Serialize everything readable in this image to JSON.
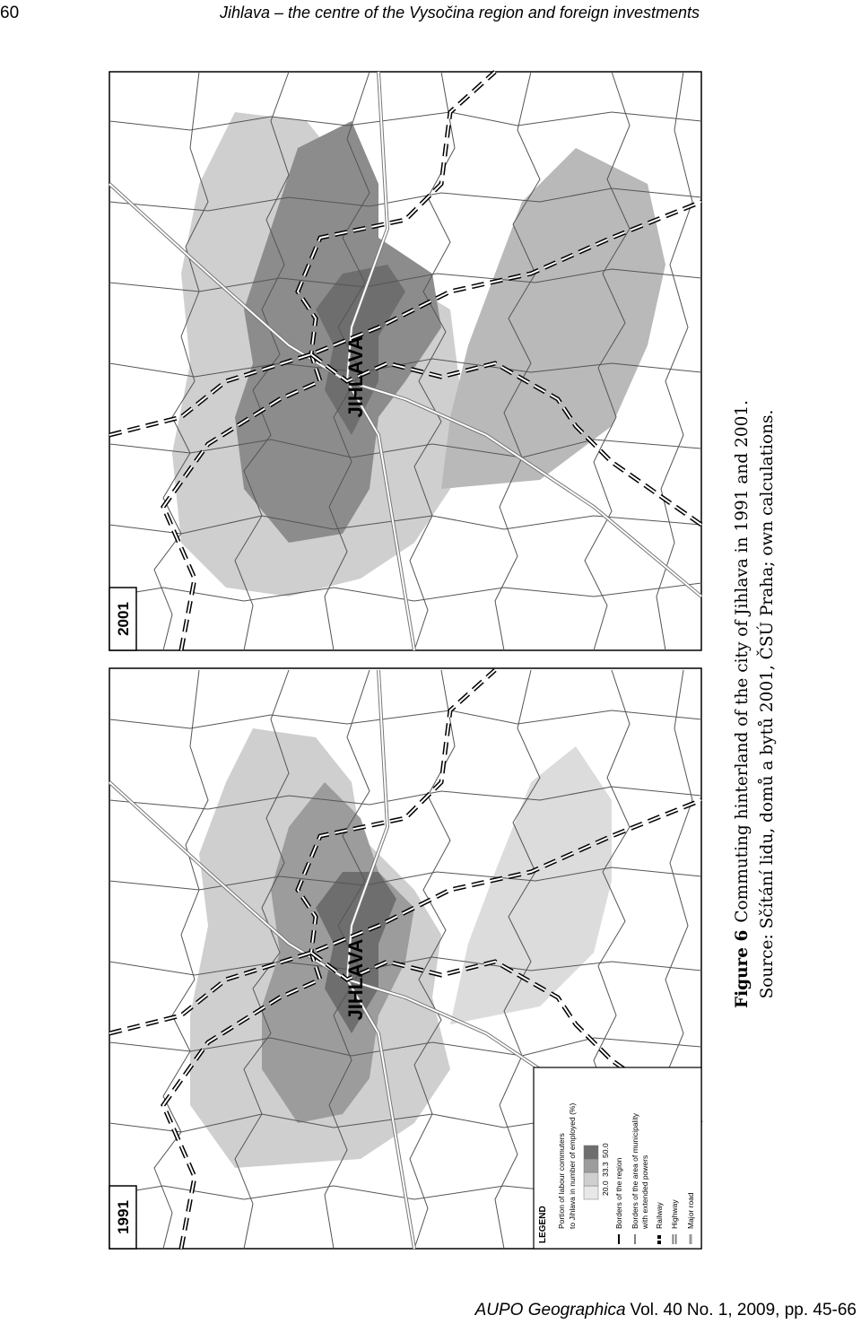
{
  "header": {
    "page": "60",
    "title": "Jihlava – the centre of the Vysočina region and foreign investments"
  },
  "maps": [
    {
      "year": "2001",
      "city": "JIHLAVA"
    },
    {
      "year": "1991",
      "city": "JIHLAVA"
    }
  ],
  "legend": {
    "title": "LEGEND",
    "subtitle": [
      "Portion of labour commuters",
      "to Jihlava in number of employed (%)"
    ],
    "classes": [
      "20.0",
      "33.3",
      "50.0"
    ],
    "items": [
      "Borders of the region",
      "Borders of the area of municipality",
      "with extended powers",
      "Railway",
      "Highway",
      "Major road"
    ]
  },
  "caption": {
    "label": "Figure 6",
    "text": "Commuting hinterland of the city of Jihlava in 1991 and 2001.",
    "source": "Source: Sčítání lidu, domů a bytů 2001, ČSÚ Praha; own calculations."
  },
  "footer": {
    "journal": "AUPO Geographica",
    "details": "Vol. 40 No. 1, 2009, pp. 45-66"
  }
}
